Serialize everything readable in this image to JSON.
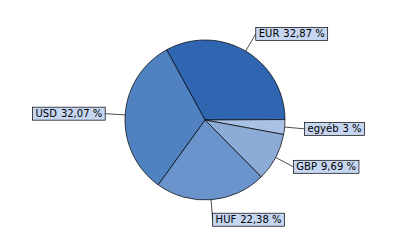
{
  "chart_data": {
    "type": "pie",
    "categories": [
      "EUR",
      "egyéb",
      "GBP",
      "HUF",
      "USD"
    ],
    "values": [
      32.87,
      3,
      9.69,
      22.38,
      32.07
    ],
    "value_labels": [
      "32,87 %",
      "3 %",
      "9,69 %",
      "22,38 %",
      "32,07 %"
    ],
    "colors": [
      "#2f65b1",
      "#a9c1e4",
      "#8cabd7",
      "#6b94cd",
      "#5082c2"
    ],
    "data_labels": true
  }
}
